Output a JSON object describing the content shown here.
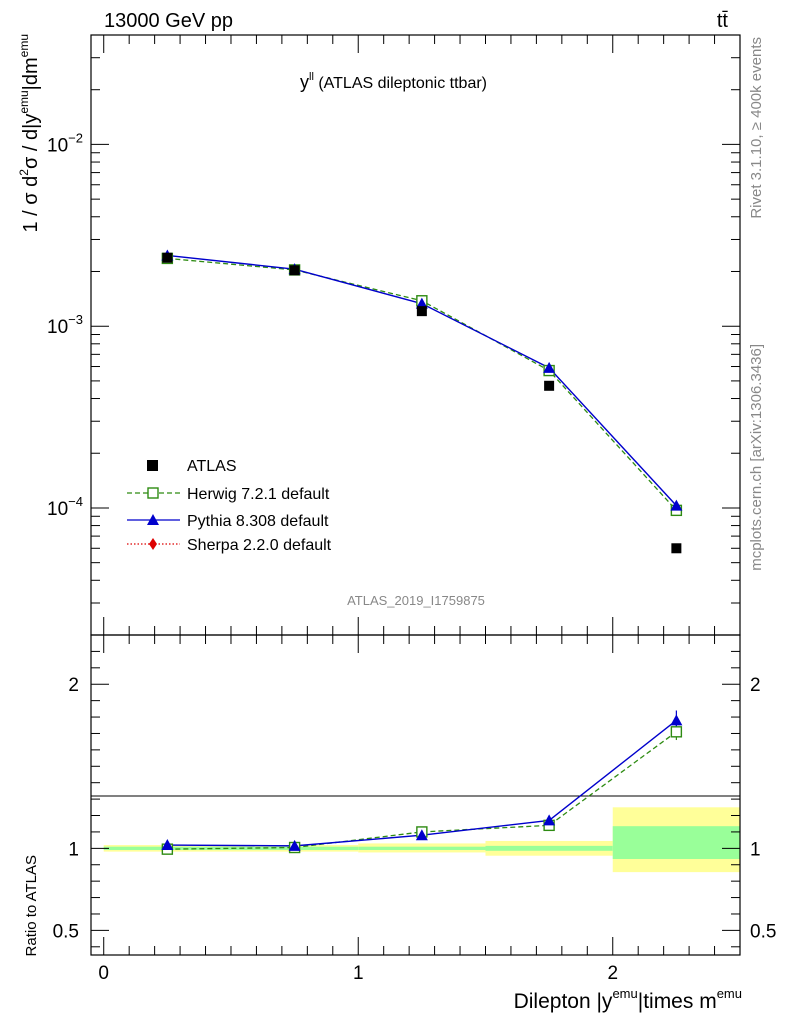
{
  "header": {
    "left": "13000 GeV pp",
    "right": "tt̄"
  },
  "side_labels": {
    "rivet": "Rivet 3.1.10, ≥ 400k events",
    "mcplots": "mcplots.cern.ch [arXiv:1306.3436]"
  },
  "main_title_prefix": "y",
  "main_title_sup": "ll",
  "main_title_suffix": " (ATLAS dileptonic ttbar)",
  "watermark": "ATLAS_2019_I1759875",
  "colors": {
    "atlas": "#000000",
    "herwig": "#2e8b12",
    "pythia": "#0000cc",
    "sherpa": "#dd0000",
    "band_yellow": "#ffff99",
    "band_green": "#99ff99"
  },
  "chart_data": [
    {
      "type": "scatter",
      "panel": "main",
      "yscale": "log",
      "ylim": [
        2e-05,
        0.04
      ],
      "xlim": [
        -0.05,
        2.5
      ],
      "ylabel": {
        "parts": [
          "1 / σ d",
          "2",
          "σ / d|y",
          "emu",
          "|dm",
          "emu"
        ]
      },
      "yticks": [
        {
          "value": 0.0001,
          "base": "10",
          "exp": "−4"
        },
        {
          "value": 0.001,
          "base": "10",
          "exp": "−3"
        },
        {
          "value": 0.01,
          "base": "10",
          "exp": "−2"
        }
      ],
      "x": [
        0.25,
        0.75,
        1.25,
        1.75,
        2.25
      ],
      "series": [
        {
          "name": "ATLAS",
          "values": [
            0.00238,
            0.00203,
            0.00121,
            0.00047,
            6e-05
          ]
        },
        {
          "name": "Herwig 7.2.1 default",
          "values": [
            0.00236,
            0.00204,
            0.00138,
            0.00057,
            9.7e-05
          ]
        },
        {
          "name": "Pythia 8.308 default",
          "values": [
            0.00245,
            0.00206,
            0.00133,
            0.00059,
            0.000103
          ]
        },
        {
          "name": "Sherpa 2.2.0 default",
          "values": []
        }
      ],
      "legend": "lower-left"
    },
    {
      "type": "line",
      "panel": "ratio",
      "ylabel": "Ratio to ATLAS",
      "ylim": [
        0.35,
        2.3
      ],
      "xlim": [
        -0.05,
        2.5
      ],
      "xlabel_parts": [
        "Dilepton |y",
        "emu",
        "|times m",
        "emu"
      ],
      "xticks": [
        {
          "value": 0,
          "label": "0"
        },
        {
          "value": 1,
          "label": "1"
        },
        {
          "value": 2,
          "label": "2"
        }
      ],
      "yticks": [
        {
          "value": 0.5,
          "label": "0.5"
        },
        {
          "value": 1,
          "label": "1"
        },
        {
          "value": 2,
          "label": "2"
        }
      ],
      "x": [
        0.25,
        0.75,
        1.25,
        1.75,
        2.25
      ],
      "bands": [
        {
          "x0": 0.0,
          "x1": 0.5,
          "yellow": [
            0.98,
            1.02
          ],
          "green": [
            0.99,
            1.01
          ]
        },
        {
          "x0": 0.5,
          "x1": 1.0,
          "yellow": [
            0.98,
            1.02
          ],
          "green": [
            0.99,
            1.01
          ]
        },
        {
          "x0": 1.0,
          "x1": 1.5,
          "yellow": [
            0.975,
            1.03
          ],
          "green": [
            0.99,
            1.01
          ]
        },
        {
          "x0": 1.5,
          "x1": 2.0,
          "yellow": [
            0.955,
            1.045
          ],
          "green": [
            0.985,
            1.015
          ]
        },
        {
          "x0": 2.0,
          "x1": 2.5,
          "yellow": [
            0.855,
            1.25
          ],
          "green": [
            0.935,
            1.135
          ]
        }
      ],
      "series": [
        {
          "name": "Herwig 7.2.1 default",
          "values": [
            0.995,
            1.005,
            1.1,
            1.14,
            1.71
          ],
          "errors": [
            0.005,
            0.005,
            0.01,
            0.02,
            0.05
          ]
        },
        {
          "name": "Pythia 8.308 default",
          "values": [
            1.02,
            1.015,
            1.08,
            1.17,
            1.78
          ],
          "errors": [
            0.005,
            0.005,
            0.01,
            0.03,
            0.06
          ]
        }
      ]
    }
  ]
}
